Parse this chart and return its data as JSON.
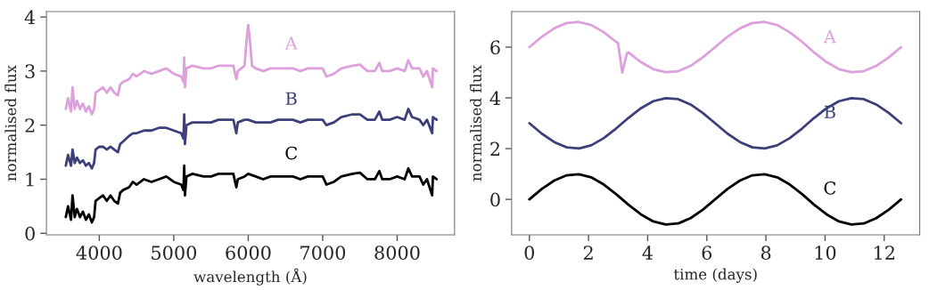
{
  "chart_data": [
    {
      "type": "line",
      "xlabel": "wavelength (Å)",
      "ylabel": "normalised flux",
      "xlim": [
        3290,
        8770
      ],
      "ylim": [
        -0.03,
        4.1
      ],
      "xticks": [
        4000,
        5000,
        6000,
        7000,
        8000
      ],
      "yticks": [
        0,
        1,
        2,
        3,
        4
      ],
      "grid": false,
      "legend": false,
      "series": [
        {
          "name": "A",
          "color": "#dda0dd",
          "x": [
            3550,
            3580,
            3620,
            3640,
            3670,
            3700,
            3740,
            3780,
            3820,
            3860,
            3900,
            3930,
            3950,
            4000,
            4050,
            4100,
            4150,
            4200,
            4250,
            4280,
            4320,
            4400,
            4450,
            4500,
            4600,
            4700,
            4800,
            4900,
            5000,
            5100,
            5130,
            5140,
            5150,
            5170,
            5250,
            5400,
            5500,
            5600,
            5700,
            5800,
            5840,
            5860,
            5950,
            5980,
            6000,
            6020,
            6050,
            6100,
            6200,
            6300,
            6400,
            6500,
            6600,
            6700,
            6800,
            6900,
            7000,
            7050,
            7150,
            7250,
            7400,
            7500,
            7600,
            7700,
            7760,
            7800,
            7900,
            8000,
            8100,
            8150,
            8200,
            8300,
            8350,
            8400,
            8470,
            8480,
            8530
          ],
          "values": [
            2.3,
            2.5,
            2.25,
            2.7,
            2.3,
            2.45,
            2.3,
            2.4,
            2.25,
            2.35,
            2.2,
            2.3,
            2.6,
            2.65,
            2.7,
            2.6,
            2.7,
            2.6,
            2.55,
            2.75,
            2.8,
            2.85,
            2.95,
            2.9,
            3.0,
            2.95,
            3.0,
            3.05,
            2.95,
            2.9,
            2.8,
            3.25,
            2.7,
            3.05,
            3.1,
            3.05,
            3.05,
            3.1,
            3.1,
            3.1,
            2.85,
            3.0,
            3.1,
            3.6,
            3.85,
            3.6,
            3.1,
            3.05,
            3.0,
            3.05,
            3.05,
            3.05,
            3.05,
            3.0,
            3.05,
            3.05,
            3.05,
            2.9,
            2.95,
            3.05,
            3.1,
            3.12,
            3.0,
            3.0,
            3.15,
            3.0,
            3.0,
            3.05,
            3.0,
            3.2,
            3.05,
            3.05,
            2.9,
            3.0,
            2.7,
            3.05,
            3.0
          ]
        },
        {
          "name": "B",
          "color": "#3c3f7a",
          "x": [
            3550,
            3580,
            3620,
            3640,
            3670,
            3700,
            3740,
            3780,
            3820,
            3860,
            3900,
            3930,
            3950,
            4000,
            4050,
            4100,
            4150,
            4200,
            4250,
            4280,
            4320,
            4400,
            4450,
            4500,
            4600,
            4700,
            4800,
            4900,
            5000,
            5100,
            5130,
            5140,
            5150,
            5170,
            5250,
            5400,
            5500,
            5600,
            5700,
            5800,
            5840,
            5860,
            5950,
            6000,
            6100,
            6200,
            6300,
            6400,
            6500,
            6600,
            6700,
            6800,
            6900,
            7000,
            7050,
            7150,
            7250,
            7400,
            7500,
            7600,
            7700,
            7760,
            7800,
            7900,
            8000,
            8100,
            8150,
            8200,
            8300,
            8350,
            8400,
            8470,
            8480,
            8530
          ],
          "values": [
            1.25,
            1.45,
            1.25,
            1.55,
            1.3,
            1.4,
            1.3,
            1.35,
            1.25,
            1.3,
            1.2,
            1.3,
            1.55,
            1.6,
            1.6,
            1.55,
            1.6,
            1.55,
            1.5,
            1.65,
            1.7,
            1.8,
            1.85,
            1.85,
            1.9,
            1.9,
            1.95,
            1.95,
            1.9,
            1.85,
            1.75,
            2.2,
            1.65,
            2.0,
            2.05,
            2.05,
            2.05,
            2.1,
            2.1,
            2.1,
            1.85,
            2.05,
            2.1,
            2.1,
            2.05,
            2.05,
            2.05,
            2.1,
            2.1,
            2.1,
            2.05,
            2.1,
            2.1,
            2.1,
            2.0,
            2.05,
            2.15,
            2.2,
            2.2,
            2.1,
            2.1,
            2.25,
            2.1,
            2.1,
            2.15,
            2.1,
            2.3,
            2.15,
            2.1,
            2.0,
            2.1,
            1.85,
            2.15,
            2.1
          ]
        },
        {
          "name": "C",
          "color": "#000000",
          "x": [
            3550,
            3580,
            3620,
            3640,
            3670,
            3700,
            3740,
            3780,
            3820,
            3860,
            3900,
            3930,
            3950,
            4000,
            4050,
            4100,
            4150,
            4200,
            4250,
            4280,
            4320,
            4400,
            4450,
            4500,
            4600,
            4700,
            4800,
            4900,
            5000,
            5100,
            5130,
            5140,
            5150,
            5170,
            5250,
            5400,
            5500,
            5600,
            5700,
            5800,
            5840,
            5860,
            5950,
            6000,
            6100,
            6200,
            6300,
            6400,
            6500,
            6600,
            6700,
            6800,
            6900,
            7000,
            7050,
            7150,
            7250,
            7400,
            7500,
            7600,
            7700,
            7760,
            7800,
            7900,
            8000,
            8100,
            8150,
            8200,
            8300,
            8350,
            8400,
            8470,
            8480,
            8530
          ],
          "values": [
            0.3,
            0.5,
            0.25,
            0.7,
            0.3,
            0.45,
            0.3,
            0.4,
            0.25,
            0.35,
            0.2,
            0.3,
            0.6,
            0.65,
            0.7,
            0.6,
            0.7,
            0.6,
            0.55,
            0.75,
            0.8,
            0.85,
            0.95,
            0.9,
            1.0,
            0.95,
            1.0,
            1.05,
            0.95,
            0.9,
            0.8,
            1.25,
            0.7,
            1.05,
            1.1,
            1.05,
            1.05,
            1.1,
            1.1,
            1.1,
            0.85,
            1.0,
            1.05,
            1.1,
            1.05,
            1.0,
            1.05,
            1.05,
            1.05,
            1.05,
            1.0,
            1.05,
            1.05,
            1.05,
            0.9,
            0.95,
            1.05,
            1.1,
            1.12,
            1.0,
            1.0,
            1.15,
            1.0,
            1.0,
            1.05,
            1.0,
            1.2,
            1.05,
            1.05,
            0.9,
            1.0,
            0.7,
            1.05,
            1.0
          ]
        }
      ]
    },
    {
      "type": "line",
      "xlabel": "time (days)",
      "ylabel": "normalised flux",
      "xlim": [
        -0.6,
        13.2
      ],
      "ylim": [
        -1.4,
        7.4
      ],
      "xticks": [
        0,
        2,
        4,
        6,
        8,
        10,
        12
      ],
      "yticks": [
        0,
        2,
        4,
        6
      ],
      "grid": false,
      "legend": false,
      "series": [
        {
          "name": "A",
          "color": "#dda0dd",
          "x": [
            0,
            0.42,
            0.84,
            1.26,
            1.68,
            2.09,
            2.51,
            2.93,
            3.0,
            3.14,
            3.3,
            3.35,
            3.77,
            4.19,
            4.61,
            5.03,
            5.45,
            5.86,
            6.28,
            6.7,
            7.12,
            7.54,
            7.96,
            8.38,
            8.8,
            9.22,
            9.63,
            10.05,
            10.47,
            10.89,
            11.31,
            11.73,
            12.15,
            12.57
          ],
          "values": [
            6,
            6.41,
            6.74,
            6.95,
            6.99,
            6.87,
            6.59,
            6.21,
            6.15,
            5.0,
            5.75,
            5.79,
            5.41,
            5.13,
            5.01,
            5.05,
            5.26,
            5.59,
            6,
            6.41,
            6.74,
            6.95,
            6.99,
            6.87,
            6.59,
            6.21,
            5.79,
            5.41,
            5.13,
            5.01,
            5.05,
            5.26,
            5.59,
            6
          ]
        },
        {
          "name": "B",
          "color": "#3c3f7a",
          "x": [
            0,
            0.42,
            0.84,
            1.26,
            1.68,
            2.09,
            2.51,
            2.93,
            3.35,
            3.77,
            4.19,
            4.61,
            5.03,
            5.45,
            5.86,
            6.28,
            6.7,
            7.12,
            7.54,
            7.96,
            8.38,
            8.8,
            9.22,
            9.63,
            10.05,
            10.47,
            10.89,
            11.31,
            11.73,
            12.15,
            12.57
          ],
          "values": [
            3,
            2.59,
            2.26,
            2.05,
            2.01,
            2.13,
            2.41,
            2.79,
            3.21,
            3.59,
            3.87,
            3.99,
            3.95,
            3.74,
            3.41,
            3,
            2.59,
            2.26,
            2.05,
            2.01,
            2.13,
            2.41,
            2.79,
            3.21,
            3.59,
            3.87,
            3.99,
            3.95,
            3.74,
            3.41,
            3
          ]
        },
        {
          "name": "C",
          "color": "#000000",
          "x": [
            0,
            0.42,
            0.84,
            1.26,
            1.68,
            2.09,
            2.51,
            2.93,
            3.35,
            3.77,
            4.19,
            4.61,
            5.03,
            5.45,
            5.86,
            6.28,
            6.7,
            7.12,
            7.54,
            7.96,
            8.38,
            8.8,
            9.22,
            9.63,
            10.05,
            10.47,
            10.89,
            11.31,
            11.73,
            12.15,
            12.57
          ],
          "values": [
            0,
            0.41,
            0.74,
            0.95,
            0.99,
            0.87,
            0.59,
            0.21,
            -0.21,
            -0.59,
            -0.87,
            -0.99,
            -0.95,
            -0.74,
            -0.41,
            0,
            0.41,
            0.74,
            0.95,
            0.99,
            0.87,
            0.59,
            0.21,
            -0.21,
            -0.59,
            -0.87,
            -0.99,
            -0.95,
            -0.74,
            -0.41,
            0
          ]
        }
      ]
    }
  ]
}
